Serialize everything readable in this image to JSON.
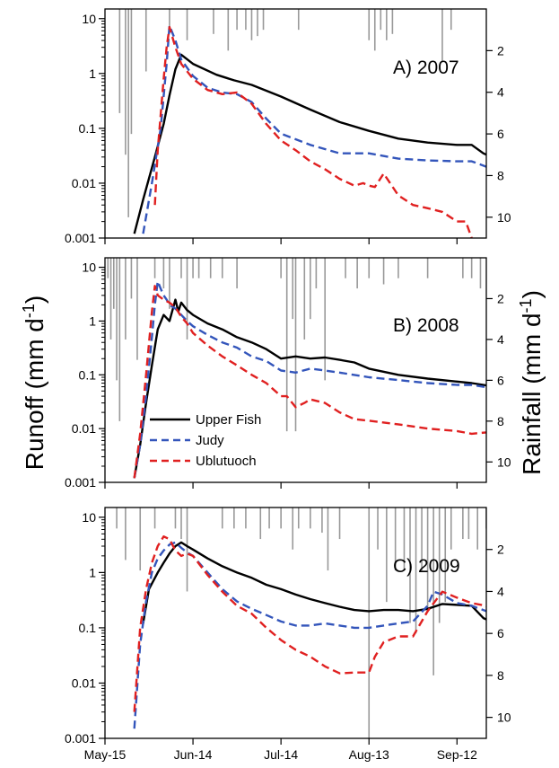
{
  "chart_data": {
    "type": "line",
    "ylabel_left": "Runoff (mm d",
    "ylabel_left_sup": "-1",
    "ylabel_left_close": ")",
    "ylabel_right": "Rainfall (mm d",
    "ylabel_right_sup": "-1",
    "ylabel_right_close": ")",
    "x_range_days": [
      0,
      130
    ],
    "x_ticks": [
      {
        "label": "May-15",
        "day": 0
      },
      {
        "label": "Jun-14",
        "day": 30
      },
      {
        "label": "Jul-14",
        "day": 60
      },
      {
        "label": "Aug-13",
        "day": 90
      },
      {
        "label": "Sep-12",
        "day": 120
      }
    ],
    "left_axis": {
      "scale": "log",
      "ylim": [
        0.001,
        15
      ],
      "ticks": [
        "0.001",
        "0.01",
        "0.1",
        "1",
        "10"
      ]
    },
    "right_axis": {
      "scale": "linear",
      "inverted": true,
      "ylim": [
        0,
        11
      ],
      "ticks": [
        "2",
        "4",
        "6",
        "8",
        "10"
      ]
    },
    "legend": {
      "placement": "middle-left of panel B",
      "entries": [
        {
          "name": "Upper Fish",
          "color": "#000000",
          "dash": "solid"
        },
        {
          "name": "Judy",
          "color": "#3355bb",
          "dash": "dashed"
        },
        {
          "name": "Ublutuoch",
          "color": "#e02020",
          "dash": "dashed"
        }
      ]
    },
    "colors": {
      "upper_fish": "#000000",
      "judy": "#3355bb",
      "ublutuoch": "#e02020",
      "rainfall": "#999999"
    },
    "panels": [
      {
        "title": "A) 2007",
        "series": [
          {
            "name": "Upper Fish",
            "x": [
              10,
              13,
              17,
              20,
              22,
              24,
              26,
              30,
              38,
              44,
              50,
              60,
              70,
              80,
              90,
              100,
              110,
              120,
              125,
              129,
              133
            ],
            "y": [
              0.0012,
              0.005,
              0.03,
              0.12,
              0.4,
              1.2,
              2.2,
              1.5,
              0.95,
              0.75,
              0.62,
              0.38,
              0.22,
              0.13,
              0.09,
              0.065,
              0.055,
              0.05,
              0.05,
              0.035,
              0.028
            ]
          },
          {
            "name": "Judy",
            "x": [
              13,
              16,
              19,
              21,
              22,
              24,
              26,
              30,
              35,
              40,
              45,
              50,
              55,
              60,
              70,
              80,
              90,
              100,
              110,
              120,
              125,
              130,
              133
            ],
            "y": [
              0.0012,
              0.01,
              0.1,
              1.5,
              7.5,
              4.0,
              1.8,
              0.9,
              0.55,
              0.45,
              0.42,
              0.3,
              0.15,
              0.08,
              0.05,
              0.035,
              0.035,
              0.028,
              0.026,
              0.025,
              0.025,
              0.02,
              0.015
            ]
          },
          {
            "name": "Ublutuoch",
            "x": [
              17,
              18,
              20,
              21,
              22,
              24,
              26,
              30,
              35,
              40,
              45,
              50,
              55,
              60,
              65,
              70,
              75,
              80,
              85,
              88,
              90,
              92,
              95,
              100,
              105,
              110,
              115,
              120,
              123,
              125
            ],
            "y": [
              0.004,
              0.04,
              0.8,
              3.0,
              7.0,
              3.0,
              1.5,
              0.8,
              0.5,
              0.42,
              0.45,
              0.28,
              0.12,
              0.06,
              0.04,
              0.025,
              0.018,
              0.012,
              0.009,
              0.01,
              0.009,
              0.0085,
              0.015,
              0.006,
              0.004,
              0.0035,
              0.003,
              0.002,
              0.002,
              0.001
            ]
          }
        ],
        "rainfall": [
          [
            5,
            5
          ],
          [
            7,
            7
          ],
          [
            8,
            10
          ],
          [
            9,
            6
          ],
          [
            14,
            3
          ],
          [
            22,
            1
          ],
          [
            28,
            1.5
          ],
          [
            37,
            1.2
          ],
          [
            42,
            2
          ],
          [
            45,
            1
          ],
          [
            48,
            1
          ],
          [
            50,
            1.5
          ],
          [
            52,
            1.3
          ],
          [
            54,
            1
          ],
          [
            66,
            1
          ],
          [
            90,
            1.5
          ],
          [
            92,
            2
          ],
          [
            94,
            1
          ],
          [
            96,
            1.5
          ],
          [
            98,
            1.2
          ],
          [
            115,
            2.5
          ],
          [
            118,
            1
          ]
        ]
      },
      {
        "title": "B) 2008",
        "series": [
          {
            "name": "Upper Fish",
            "x": [
              10,
              12,
              14,
              16,
              18,
              20,
              22,
              24,
              25,
              26,
              28,
              30,
              35,
              40,
              45,
              50,
              55,
              60,
              65,
              70,
              75,
              80,
              85,
              90,
              100,
              110,
              120,
              125,
              129,
              133
            ],
            "y": [
              0.0012,
              0.005,
              0.03,
              0.15,
              0.7,
              1.3,
              1.0,
              2.5,
              1.5,
              2.2,
              1.6,
              1.3,
              0.9,
              0.7,
              0.5,
              0.4,
              0.3,
              0.2,
              0.22,
              0.2,
              0.21,
              0.19,
              0.17,
              0.13,
              0.1,
              0.085,
              0.075,
              0.07,
              0.065,
              0.06
            ]
          },
          {
            "name": "Judy",
            "x": [
              10,
              12,
              14,
              16,
              17,
              18,
              19,
              20,
              21,
              22,
              24,
              26,
              28,
              30,
              35,
              40,
              45,
              50,
              55,
              60,
              65,
              70,
              75,
              80,
              90,
              100,
              110,
              120,
              125,
              129,
              133
            ],
            "y": [
              0.0012,
              0.005,
              0.04,
              0.5,
              2.0,
              5.5,
              4.0,
              3.0,
              2.5,
              2.0,
              1.7,
              1.3,
              1.0,
              0.8,
              0.55,
              0.4,
              0.32,
              0.22,
              0.18,
              0.12,
              0.11,
              0.13,
              0.12,
              0.11,
              0.09,
              0.08,
              0.07,
              0.065,
              0.065,
              0.06,
              0.055
            ]
          },
          {
            "name": "Ublutuoch",
            "x": [
              10,
              12,
              14,
              16,
              17,
              18,
              20,
              22,
              24,
              26,
              28,
              30,
              35,
              40,
              45,
              50,
              55,
              60,
              62,
              65,
              68,
              70,
              75,
              80,
              85,
              90,
              100,
              110,
              120,
              125,
              130,
              133
            ],
            "y": [
              0.0012,
              0.008,
              0.1,
              1.5,
              4.5,
              3.0,
              2.5,
              2.2,
              1.8,
              1.2,
              0.9,
              0.6,
              0.35,
              0.22,
              0.15,
              0.1,
              0.07,
              0.04,
              0.04,
              0.025,
              0.03,
              0.035,
              0.03,
              0.02,
              0.015,
              0.014,
              0.012,
              0.01,
              0.009,
              0.008,
              0.0085,
              0.008
            ]
          },
          {
            "name": "Rainfall",
            "x": [],
            "y": []
          }
        ],
        "rainfall": [
          [
            1,
            1
          ],
          [
            2,
            4
          ],
          [
            3,
            2.5
          ],
          [
            4,
            6
          ],
          [
            5,
            8
          ],
          [
            7,
            4
          ],
          [
            9,
            2
          ],
          [
            11,
            5
          ],
          [
            17,
            1
          ],
          [
            20,
            1.5
          ],
          [
            22,
            2.5
          ],
          [
            26,
            1
          ],
          [
            28,
            4
          ],
          [
            30,
            1
          ],
          [
            32,
            1
          ],
          [
            36,
            1
          ],
          [
            40,
            1
          ],
          [
            45,
            1.5
          ],
          [
            60,
            1
          ],
          [
            62,
            8.5
          ],
          [
            64,
            3
          ],
          [
            65,
            8.5
          ],
          [
            68,
            4
          ],
          [
            70,
            3
          ],
          [
            72,
            1.5
          ],
          [
            75,
            6
          ],
          [
            82,
            1
          ],
          [
            86,
            1.5
          ],
          [
            90,
            1
          ],
          [
            95,
            1.3
          ],
          [
            100,
            1
          ],
          [
            110,
            1
          ],
          [
            122,
            1
          ],
          [
            125,
            1
          ],
          [
            128,
            1.5
          ],
          [
            131,
            3
          ],
          [
            134,
            1.5
          ]
        ]
      },
      {
        "title": "C) 2009",
        "series": [
          {
            "name": "Upper Fish",
            "x": [
              13,
              15,
              18,
              20,
              22,
              24,
              26,
              28,
              30,
              35,
              40,
              45,
              50,
              55,
              60,
              65,
              70,
              75,
              80,
              85,
              90,
              95,
              100,
              105,
              110,
              115,
              120,
              125,
              129,
              133
            ],
            "y": [
              0.12,
              0.5,
              1.0,
              1.5,
              2.2,
              3.0,
              3.5,
              3.0,
              2.6,
              1.8,
              1.3,
              1.0,
              0.8,
              0.6,
              0.5,
              0.4,
              0.33,
              0.28,
              0.24,
              0.21,
              0.2,
              0.21,
              0.21,
              0.2,
              0.22,
              0.27,
              0.26,
              0.25,
              0.15,
              0.12
            ]
          },
          {
            "name": "Judy",
            "x": [
              10,
              12,
              14,
              16,
              18,
              20,
              22,
              24,
              26,
              28,
              30,
              35,
              40,
              45,
              50,
              55,
              60,
              65,
              70,
              75,
              80,
              85,
              90,
              95,
              100,
              105,
              110,
              112,
              115,
              120,
              125,
              130,
              133
            ],
            "y": [
              0.0015,
              0.05,
              0.3,
              1.0,
              1.8,
              2.5,
              3.2,
              3.5,
              2.8,
              2.3,
              2.0,
              1.0,
              0.5,
              0.3,
              0.22,
              0.17,
              0.13,
              0.11,
              0.11,
              0.12,
              0.11,
              0.1,
              0.1,
              0.11,
              0.12,
              0.13,
              0.25,
              0.45,
              0.4,
              0.28,
              0.25,
              0.2,
              0.13
            ]
          },
          {
            "name": "Ublutuoch",
            "x": [
              10,
              12,
              14,
              16,
              18,
              20,
              22,
              24,
              26,
              28,
              30,
              35,
              40,
              45,
              50,
              55,
              60,
              65,
              70,
              75,
              80,
              85,
              90,
              92,
              95,
              100,
              105,
              110,
              115,
              120,
              125,
              130,
              133
            ],
            "y": [
              0.003,
              0.1,
              0.5,
              1.5,
              3.0,
              4.5,
              4.0,
              2.5,
              2.0,
              2.2,
              2.0,
              0.9,
              0.45,
              0.25,
              0.18,
              0.1,
              0.06,
              0.04,
              0.03,
              0.02,
              0.015,
              0.0155,
              0.0155,
              0.03,
              0.055,
              0.07,
              0.07,
              0.2,
              0.45,
              0.35,
              0.28,
              0.25,
              0.15
            ]
          }
        ],
        "rainfall": [
          [
            4,
            1
          ],
          [
            7,
            2.5
          ],
          [
            12,
            3
          ],
          [
            17,
            1
          ],
          [
            24,
            1
          ],
          [
            26,
            1.5
          ],
          [
            28,
            4
          ],
          [
            40,
            1
          ],
          [
            44,
            1
          ],
          [
            48,
            1
          ],
          [
            53,
            1.5
          ],
          [
            56,
            1
          ],
          [
            60,
            1
          ],
          [
            64,
            2
          ],
          [
            66,
            1
          ],
          [
            70,
            1
          ],
          [
            74,
            1.2
          ],
          [
            76,
            3
          ],
          [
            80,
            1.5
          ],
          [
            90,
            11
          ],
          [
            93,
            2
          ],
          [
            96,
            4.5
          ],
          [
            99,
            3
          ],
          [
            102,
            3
          ],
          [
            104,
            5.5
          ],
          [
            106,
            6
          ],
          [
            108,
            3
          ],
          [
            110,
            5
          ],
          [
            112,
            8
          ],
          [
            114,
            5.5
          ],
          [
            116,
            4.5
          ],
          [
            118,
            2
          ],
          [
            122,
            1.5
          ],
          [
            124,
            1.5
          ],
          [
            127,
            2
          ],
          [
            130,
            1
          ]
        ]
      }
    ]
  }
}
